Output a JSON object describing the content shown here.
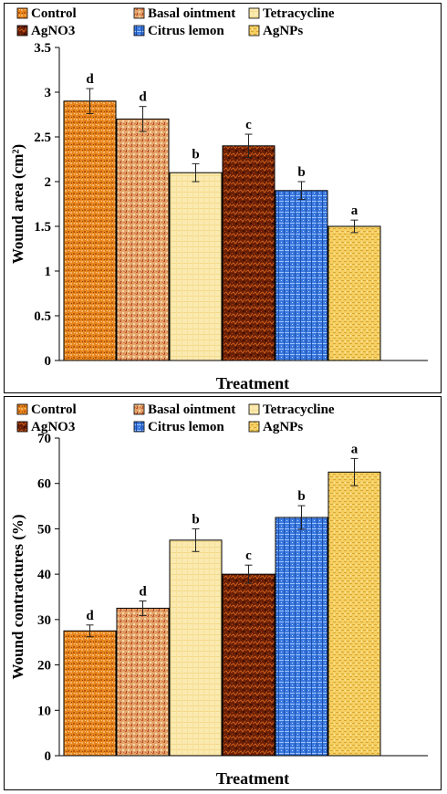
{
  "legend": [
    {
      "label": "Control",
      "pattern": "pat-control"
    },
    {
      "label": "Basal ointment",
      "pattern": "pat-basal"
    },
    {
      "label": "Tetracycline",
      "pattern": "pat-tetra"
    },
    {
      "label": "AgNO3",
      "pattern": "pat-agno3"
    },
    {
      "label": "Citrus lemon",
      "pattern": "pat-citrus"
    },
    {
      "label": "AgNPs",
      "pattern": "pat-agnps"
    }
  ],
  "colors": {
    "control": "#e8861e",
    "basal": "#e4a56a",
    "tetracycline": "#fbeab0",
    "agno3": "#7a2a08",
    "citrus": "#3a78e0",
    "agnps": "#f5cf62"
  },
  "chart_data": [
    {
      "type": "bar",
      "categories": [
        "Control",
        "Basal ointment",
        "Tetracycline",
        "AgNO3",
        "Citrus lemon",
        "AgNPs"
      ],
      "values": [
        2.9,
        2.7,
        2.1,
        2.4,
        1.9,
        1.5
      ],
      "errors": [
        0.14,
        0.14,
        0.1,
        0.13,
        0.1,
        0.07
      ],
      "letters": [
        "d",
        "d",
        "b",
        "c",
        "b",
        "a"
      ],
      "xlabel": "Treatment",
      "ylabel": "Wound area (cm²)",
      "ylim": [
        0,
        3.5
      ],
      "yticks": [
        "0",
        "0.5",
        "1",
        "1.5",
        "2",
        "2.5",
        "3",
        "3.5"
      ],
      "legend_position": "top",
      "grid": false
    },
    {
      "type": "bar",
      "categories": [
        "Control",
        "Basal ointment",
        "Tetracycline",
        "AgNO3",
        "Citrus lemon",
        "AgNPs"
      ],
      "values": [
        27.5,
        32.5,
        47.5,
        40,
        52.5,
        62.5
      ],
      "errors": [
        1.3,
        1.6,
        2.5,
        2.0,
        2.6,
        3.0
      ],
      "letters": [
        "d",
        "d",
        "b",
        "c",
        "b",
        "a"
      ],
      "xlabel": "Treatment",
      "ylabel": "Wound contractures (%)",
      "ylim": [
        0,
        70
      ],
      "yticks": [
        "0",
        "10",
        "20",
        "30",
        "40",
        "50",
        "60",
        "70"
      ],
      "legend_position": "top",
      "grid": false
    }
  ]
}
